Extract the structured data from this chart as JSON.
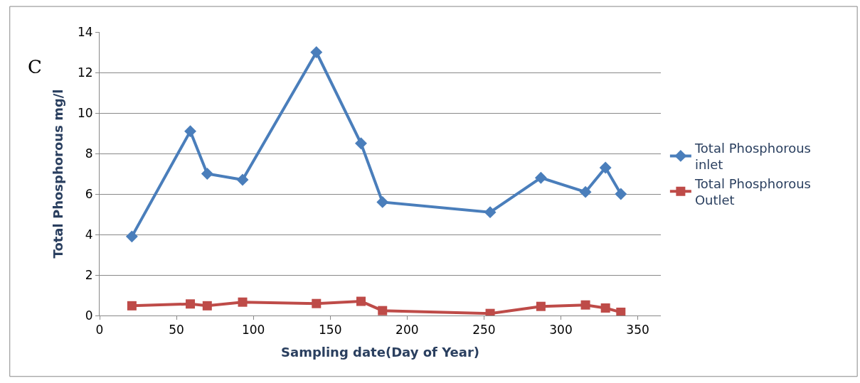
{
  "chart_data": {
    "type": "line",
    "xlabel": "Sampling date(Day of Year)",
    "ylabel": "Total Phosphorous mg/l",
    "annotations": [
      "C"
    ],
    "xlim": [
      0,
      365
    ],
    "xticks": [
      0,
      50,
      100,
      150,
      200,
      250,
      300,
      350
    ],
    "ylim": [
      0,
      14
    ],
    "yticks": [
      0,
      2,
      4,
      6,
      8,
      10,
      12,
      14
    ],
    "grid": "y",
    "legend": "right",
    "series": [
      {
        "name": "Total Phosphorous\ninlet",
        "color": "#4a7ebb",
        "marker": "diamond",
        "x": [
          21,
          59,
          70,
          93,
          141,
          170,
          184,
          254,
          287,
          316,
          329,
          339
        ],
        "values": [
          3.9,
          9.1,
          7.0,
          6.7,
          13.0,
          8.5,
          5.6,
          5.1,
          6.8,
          6.1,
          7.3,
          6.0
        ]
      },
      {
        "name": "Total Phosphorous\nOutlet",
        "color": "#be4b48",
        "marker": "square",
        "x": [
          21,
          59,
          70,
          93,
          141,
          170,
          184,
          254,
          287,
          316,
          329,
          339
        ],
        "values": [
          0.48,
          0.57,
          0.48,
          0.66,
          0.59,
          0.7,
          0.24,
          0.1,
          0.45,
          0.52,
          0.37,
          0.16
        ]
      }
    ]
  }
}
